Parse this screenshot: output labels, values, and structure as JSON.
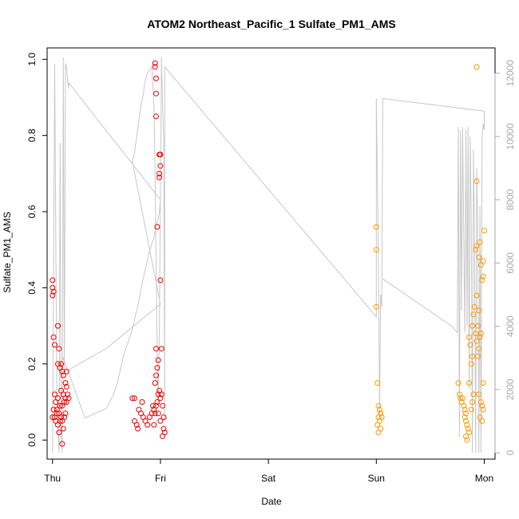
{
  "chart_data": {
    "type": "scatter",
    "title": "ATOM2 Northeast_Pacific_1 Sulfate_PM1_AMS",
    "xlabel": "Date",
    "ylabel": "Sulfate_PM1_AMS",
    "xlim": [
      -0.05,
      4.1
    ],
    "ylim": [
      -0.05,
      1.03
    ],
    "y2lim": [
      -200,
      12800
    ],
    "x_ticks": [
      {
        "value": 0,
        "label": "Thu"
      },
      {
        "value": 1,
        "label": "Fri"
      },
      {
        "value": 2,
        "label": "Sat"
      },
      {
        "value": 3,
        "label": "Sun"
      },
      {
        "value": 4,
        "label": "Mon"
      }
    ],
    "y_ticks": [
      "0.0",
      "0.2",
      "0.4",
      "0.6",
      "0.8",
      "1.0"
    ],
    "y2_ticks": [
      "0",
      "2000",
      "4000",
      "6000",
      "8000",
      "10000",
      "12000"
    ],
    "grid": false,
    "colors": {
      "red_series": "#ee0000",
      "orange_series": "#ff9900",
      "altitude_line": "#c8c8c8",
      "axis": "#000000",
      "right_axis": "#a9a9a9"
    },
    "series": [
      {
        "color": "red",
        "points": [
          [
            0.0,
            0.42
          ],
          [
            0.0,
            0.4
          ],
          [
            0.01,
            0.39
          ],
          [
            0.0,
            0.38
          ],
          [
            0.01,
            0.27
          ],
          [
            0.02,
            0.25
          ],
          [
            0.05,
            0.3
          ],
          [
            0.06,
            0.24
          ],
          [
            0.05,
            0.2
          ],
          [
            0.08,
            0.2
          ],
          [
            0.07,
            0.19
          ],
          [
            0.09,
            0.18
          ],
          [
            0.1,
            0.17
          ],
          [
            0.13,
            0.18
          ],
          [
            0.12,
            0.15
          ],
          [
            0.13,
            0.14
          ],
          [
            0.08,
            0.13
          ],
          [
            0.1,
            0.12
          ],
          [
            0.12,
            0.11
          ],
          [
            0.11,
            0.1
          ],
          [
            0.09,
            0.09
          ],
          [
            0.07,
            0.09
          ],
          [
            0.05,
            0.11
          ],
          [
            0.03,
            0.1
          ],
          [
            0.02,
            0.12
          ],
          [
            0.01,
            0.08
          ],
          [
            0.02,
            0.06
          ],
          [
            0.04,
            0.07
          ],
          [
            0.0,
            0.06
          ],
          [
            0.03,
            0.05
          ],
          [
            0.05,
            0.04
          ],
          [
            0.07,
            0.05
          ],
          [
            0.08,
            0.06
          ],
          [
            0.09,
            0.05
          ],
          [
            0.1,
            0.03
          ],
          [
            0.11,
            0.06
          ],
          [
            0.12,
            0.07
          ],
          [
            0.13,
            0.1
          ],
          [
            0.06,
            0.02
          ],
          [
            0.09,
            -0.01
          ],
          [
            0.14,
            0.12
          ],
          [
            0.15,
            0.11
          ],
          [
            0.04,
            0.08
          ],
          [
            0.06,
            0.07
          ],
          [
            0.74,
            0.11
          ],
          [
            0.76,
            0.11
          ],
          [
            0.76,
            0.05
          ],
          [
            0.78,
            0.04
          ],
          [
            0.79,
            0.03
          ],
          [
            0.8,
            0.08
          ],
          [
            0.82,
            0.07
          ],
          [
            0.83,
            0.1
          ],
          [
            0.84,
            0.06
          ],
          [
            0.86,
            0.05
          ],
          [
            0.88,
            0.04
          ],
          [
            0.9,
            0.06
          ],
          [
            0.92,
            0.07
          ],
          [
            0.93,
            0.09
          ],
          [
            0.94,
            0.08
          ],
          [
            0.95,
            0.07
          ],
          [
            0.96,
            0.09
          ],
          [
            0.97,
            0.1
          ],
          [
            0.98,
            0.12
          ],
          [
            0.99,
            0.13
          ],
          [
            1.0,
            0.11
          ],
          [
            1.01,
            0.12
          ],
          [
            1.02,
            0.09
          ],
          [
            1.03,
            0.06
          ],
          [
            1.03,
            0.03
          ],
          [
            1.04,
            0.02
          ],
          [
            1.02,
            0.01
          ],
          [
            0.95,
            0.15
          ],
          [
            0.96,
            0.17
          ],
          [
            0.97,
            0.19
          ],
          [
            0.98,
            0.21
          ],
          [
            0.96,
            0.24
          ],
          [
            1.01,
            0.24
          ],
          [
            1.0,
            0.42
          ],
          [
            0.97,
            0.56
          ],
          [
            0.96,
            0.85
          ],
          [
            0.96,
            0.91
          ],
          [
            0.96,
            0.95
          ],
          [
            0.95,
            0.98
          ],
          [
            0.95,
            0.99
          ],
          [
            1.0,
            0.75
          ],
          [
            0.99,
            0.75
          ],
          [
            0.99,
            0.7
          ],
          [
            1.0,
            0.72
          ],
          [
            0.99,
            0.69
          ],
          [
            0.94,
            0.04
          ],
          [
            0.98,
            0.07
          ],
          [
            1.0,
            0.05
          ]
        ]
      },
      {
        "color": "orange",
        "points": [
          [
            3.0,
            0.56
          ],
          [
            3.0,
            0.5
          ],
          [
            3.0,
            0.35
          ],
          [
            3.01,
            0.15
          ],
          [
            3.02,
            0.09
          ],
          [
            3.03,
            0.08
          ],
          [
            3.04,
            0.07
          ],
          [
            3.02,
            0.06
          ],
          [
            3.03,
            0.05
          ],
          [
            3.01,
            0.04
          ],
          [
            3.04,
            0.03
          ],
          [
            3.02,
            0.02
          ],
          [
            3.05,
            0.06
          ],
          [
            3.04,
            0.07
          ],
          [
            3.76,
            0.15
          ],
          [
            3.77,
            0.12
          ],
          [
            3.78,
            0.11
          ],
          [
            3.79,
            0.1
          ],
          [
            3.8,
            0.11
          ],
          [
            3.81,
            0.09
          ],
          [
            3.82,
            0.08
          ],
          [
            3.83,
            0.07
          ],
          [
            3.82,
            0.06
          ],
          [
            3.83,
            0.05
          ],
          [
            3.84,
            0.04
          ],
          [
            3.85,
            0.03
          ],
          [
            3.86,
            0.02
          ],
          [
            3.84,
            0.0
          ],
          [
            3.83,
            0.01
          ],
          [
            3.88,
            0.08
          ],
          [
            3.89,
            0.1
          ],
          [
            3.9,
            0.12
          ],
          [
            3.86,
            0.15
          ],
          [
            3.88,
            0.2
          ],
          [
            3.89,
            0.22
          ],
          [
            3.87,
            0.25
          ],
          [
            3.86,
            0.27
          ],
          [
            3.89,
            0.3
          ],
          [
            3.9,
            0.33
          ],
          [
            3.91,
            0.35
          ],
          [
            3.92,
            0.28
          ],
          [
            3.93,
            0.26
          ],
          [
            3.94,
            0.3
          ],
          [
            3.95,
            0.34
          ],
          [
            3.93,
            0.38
          ],
          [
            3.92,
            0.5
          ],
          [
            3.93,
            0.51
          ],
          [
            3.95,
            0.48
          ],
          [
            3.97,
            0.46
          ],
          [
            3.99,
            0.47
          ],
          [
            3.96,
            0.52
          ],
          [
            4.0,
            0.55
          ],
          [
            3.99,
            0.43
          ],
          [
            3.98,
            0.42
          ],
          [
            3.97,
            0.28
          ],
          [
            3.96,
            0.27
          ],
          [
            3.95,
            0.24
          ],
          [
            3.94,
            0.22
          ],
          [
            3.93,
            0.68
          ],
          [
            3.93,
            0.98
          ],
          [
            3.95,
            0.12
          ],
          [
            3.97,
            0.1
          ],
          [
            3.98,
            0.09
          ],
          [
            3.99,
            0.08
          ],
          [
            3.96,
            0.06
          ],
          [
            3.98,
            0.05
          ],
          [
            3.99,
            0.15
          ]
        ]
      }
    ],
    "secondary_line": [
      [
        0.0,
        0
      ],
      [
        0.02,
        12300
      ],
      [
        0.04,
        1500
      ],
      [
        0.06,
        0
      ],
      [
        0.07,
        9800
      ],
      [
        0.08,
        500
      ],
      [
        0.09,
        0
      ],
      [
        0.1,
        12500
      ],
      [
        0.11,
        2500
      ],
      [
        0.12,
        12300
      ],
      [
        0.13,
        12200
      ],
      [
        0.14,
        11800
      ],
      [
        0.15,
        11500
      ],
      [
        0.15,
        11700
      ],
      [
        1.0,
        8000
      ],
      [
        0.99,
        7600
      ],
      [
        0.98,
        7400
      ],
      [
        0.97,
        7300
      ],
      [
        0.96,
        7200
      ],
      [
        0.95,
        7000
      ],
      [
        0.94,
        6800
      ],
      [
        0.93,
        6700
      ],
      [
        0.92,
        6600
      ],
      [
        0.9,
        6400
      ],
      [
        0.88,
        6100
      ],
      [
        0.86,
        5800
      ],
      [
        0.84,
        5500
      ],
      [
        0.82,
        5200
      ],
      [
        0.8,
        4800
      ],
      [
        0.78,
        4500
      ],
      [
        0.76,
        4200
      ],
      [
        0.74,
        3900
      ],
      [
        0.72,
        3700
      ],
      [
        0.7,
        3500
      ],
      [
        0.68,
        3300
      ],
      [
        0.66,
        3100
      ],
      [
        0.64,
        2800
      ],
      [
        0.62,
        2500
      ],
      [
        0.6,
        2200
      ],
      [
        0.58,
        2000
      ],
      [
        0.56,
        1800
      ],
      [
        0.5,
        1400
      ],
      [
        0.3,
        1100
      ],
      [
        0.1,
        3000
      ],
      [
        0.08,
        2600
      ],
      [
        0.08,
        2600
      ],
      [
        0.09,
        2500
      ],
      [
        0.5,
        3300
      ],
      [
        1.0,
        4700
      ],
      [
        0.74,
        9200
      ],
      [
        0.76,
        9500
      ],
      [
        0.78,
        10000
      ],
      [
        0.8,
        10500
      ],
      [
        0.82,
        11000
      ],
      [
        0.84,
        11300
      ],
      [
        0.86,
        11800
      ],
      [
        0.88,
        12000
      ],
      [
        0.9,
        12100
      ],
      [
        0.92,
        12200
      ],
      [
        0.94,
        11000
      ],
      [
        0.95,
        9000
      ],
      [
        0.96,
        6000
      ],
      [
        0.97,
        3000
      ],
      [
        0.98,
        1500
      ],
      [
        0.99,
        4000
      ],
      [
        1.0,
        8000
      ],
      [
        1.01,
        12500
      ],
      [
        1.02,
        11000
      ],
      [
        1.03,
        9800
      ],
      [
        1.04,
        1000
      ],
      [
        1.04,
        12200
      ],
      [
        3.0,
        4300
      ],
      [
        3.0,
        11200
      ],
      [
        3.02,
        6000
      ],
      [
        3.03,
        1200
      ],
      [
        3.04,
        5000
      ],
      [
        3.05,
        4600
      ],
      [
        3.06,
        11200
      ],
      [
        4.0,
        10800
      ],
      [
        4.0,
        10200
      ],
      [
        3.99,
        10400
      ],
      [
        3.98,
        10000
      ],
      [
        3.97,
        0
      ],
      [
        3.96,
        7800
      ],
      [
        3.95,
        0
      ],
      [
        3.94,
        6900
      ],
      [
        3.93,
        9000
      ],
      [
        3.92,
        0
      ],
      [
        3.91,
        6600
      ],
      [
        3.9,
        9600
      ],
      [
        3.89,
        0
      ],
      [
        3.88,
        7200
      ],
      [
        3.87,
        10000
      ],
      [
        3.86,
        2000
      ],
      [
        3.85,
        10300
      ],
      [
        3.84,
        4000
      ],
      [
        3.83,
        10200
      ],
      [
        3.82,
        3800
      ],
      [
        3.81,
        6900
      ],
      [
        3.8,
        10300
      ],
      [
        3.79,
        4500
      ],
      [
        3.78,
        10200
      ],
      [
        3.77,
        500
      ],
      [
        3.76,
        10300
      ],
      [
        3.75,
        3800
      ],
      [
        3.7,
        4000
      ],
      [
        3.06,
        5500
      ]
    ]
  }
}
